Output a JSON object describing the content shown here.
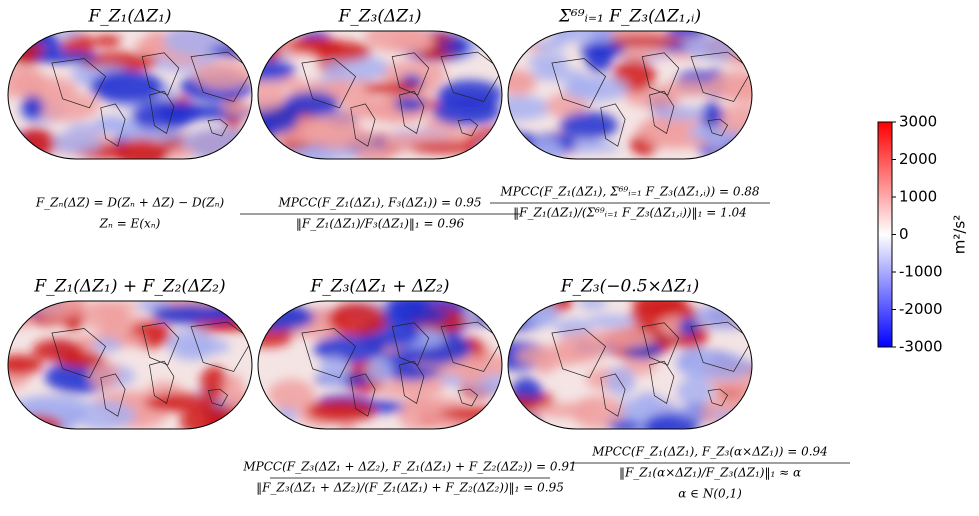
{
  "panels": [
    {
      "title": "F_Z₁(ΔZ₁)"
    },
    {
      "title": "F_Z₃(ΔZ₁)"
    },
    {
      "title": "Σ⁶⁹ᵢ₌₁ F_Z₃(ΔZ₁,ᵢ)"
    },
    {
      "title": "F_Z₁(ΔZ₁) + F_Z₂(ΔZ₂)"
    },
    {
      "title": "F_Z₃(ΔZ₁ + ΔZ₂)"
    },
    {
      "title": "F_Z₃(−0.5×ΔZ₁)"
    }
  ],
  "equations": [
    {
      "lines": [
        "F_Zₙ(ΔZ) = D(Zₙ + ΔZ) − D(Zₙ)",
        "Zₙ = E(xₙ)"
      ]
    },
    {
      "lines": [
        "MPCC(F_Z₁(ΔZ₁), F₃(ΔZ₁)) = 0.95",
        "‖F_Z₁(ΔZ₁)/F₃(ΔZ₁)‖₁ = 0.96"
      ]
    },
    {
      "lines": [
        "MPCC(F_Z₁(ΔZ₁), Σ⁶⁹ᵢ₌₁ F_Z₃(ΔZ₁,ᵢ)) = 0.88",
        "‖F_Z₁(ΔZ₁)/(Σ⁶⁹ᵢ₌₁ F_Z₃(ΔZ₁,ᵢ))‖₁ = 1.04"
      ]
    },
    {
      "lines": [
        "MPCC(F_Z₃(ΔZ₁ + ΔZ₂), F_Z₁(ΔZ₁) + F_Z₂(ΔZ₂)) = 0.91",
        "‖F_Z₃(ΔZ₁ + ΔZ₂)/(F_Z₁(ΔZ₁) + F_Z₂(ΔZ₂))‖₁ = 0.95"
      ]
    },
    {
      "lines": [
        "MPCC(F_Z₁(ΔZ₁), F_Z₃(α×ΔZ₁)) = 0.94",
        "‖F_Z₁(α×ΔZ₁)/F_Z₃(ΔZ₁)‖₁ ≈ α",
        "α ∈ N(0,1)"
      ]
    }
  ],
  "chart_data": {
    "type": "colorbar",
    "label": "m²/s²",
    "zlim": [
      -3000,
      3000
    ],
    "zticks": [
      3000,
      2000,
      1000,
      0,
      -1000,
      -2000,
      -3000
    ],
    "colors": [
      "#0000ff",
      "#ffffff",
      "#ff0000"
    ]
  }
}
